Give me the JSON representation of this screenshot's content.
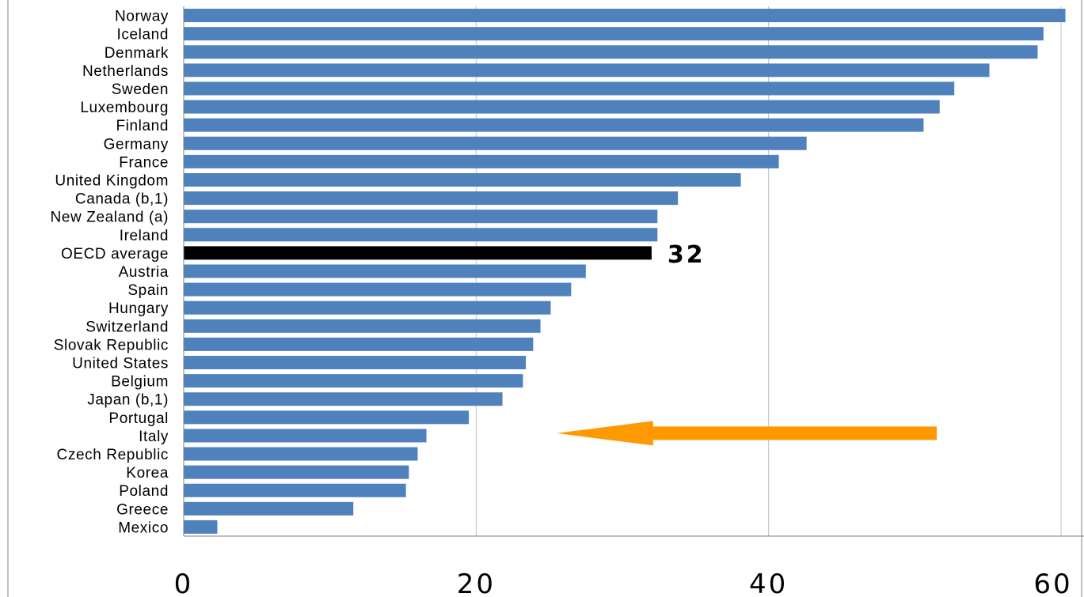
{
  "chart_data": {
    "type": "bar",
    "orientation": "horizontal",
    "title": "",
    "xlabel": "",
    "ylabel": "",
    "xlim": [
      0,
      60
    ],
    "xticks": [
      0,
      20,
      40,
      60
    ],
    "grid": true,
    "bar_color": "#4f81bd",
    "highlight_color": "#000000",
    "categories": [
      "Norway",
      "Iceland",
      "Denmark",
      "Netherlands",
      "Sweden",
      "Luxembourg",
      "Finland",
      "Germany",
      "France",
      "United Kingdom",
      "Canada (b,1)",
      "New Zealand (a)",
      "Ireland",
      "OECD average",
      "Austria",
      "Spain",
      "Hungary",
      "Switzerland",
      "Slovak Republic",
      "United States",
      "Belgium",
      "Japan (b,1)",
      "Portugal",
      "Italy",
      "Czech Republic",
      "Korea",
      "Poland",
      "Greece",
      "Mexico"
    ],
    "values": [
      60.3,
      58.8,
      58.4,
      55.1,
      52.7,
      51.7,
      50.6,
      42.6,
      40.7,
      38.1,
      33.8,
      32.4,
      32.4,
      32.0,
      27.5,
      26.5,
      25.1,
      24.4,
      23.9,
      23.4,
      23.2,
      21.8,
      19.5,
      16.6,
      16.0,
      15.4,
      15.2,
      11.6,
      2.3
    ],
    "highlight": "OECD average",
    "data_labels": [
      {
        "category": "OECD average",
        "text": "32"
      }
    ],
    "annotations": [
      {
        "type": "arrow",
        "direction": "left",
        "color": "#ff9900",
        "from_value": 51.5,
        "to_value": 25.5,
        "between": [
          "Portugal",
          "Italy"
        ]
      }
    ]
  }
}
